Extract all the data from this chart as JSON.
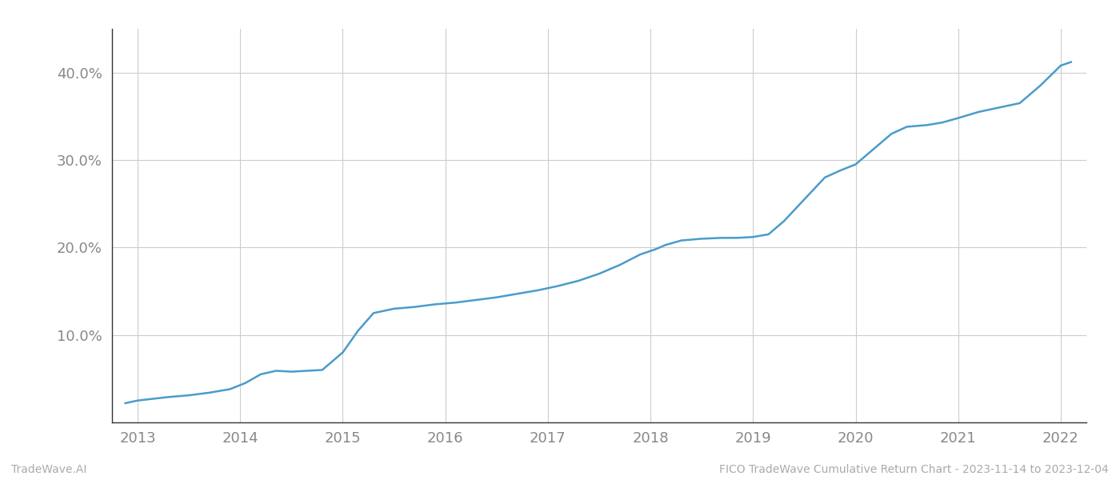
{
  "x_years": [
    2012.88,
    2013.0,
    2013.15,
    2013.3,
    2013.5,
    2013.7,
    2013.9,
    2014.05,
    2014.2,
    2014.35,
    2014.5,
    2014.65,
    2014.8,
    2015.0,
    2015.15,
    2015.3,
    2015.5,
    2015.7,
    2015.9,
    2016.1,
    2016.3,
    2016.5,
    2016.7,
    2016.9,
    2017.1,
    2017.3,
    2017.5,
    2017.7,
    2017.9,
    2018.05,
    2018.15,
    2018.3,
    2018.5,
    2018.7,
    2018.85,
    2019.0,
    2019.15,
    2019.3,
    2019.5,
    2019.7,
    2019.85,
    2020.0,
    2020.2,
    2020.35,
    2020.5,
    2020.7,
    2020.85,
    2021.0,
    2021.2,
    2021.4,
    2021.6,
    2021.8,
    2022.0,
    2022.1
  ],
  "y_values": [
    2.2,
    2.5,
    2.7,
    2.9,
    3.1,
    3.4,
    3.8,
    4.5,
    5.5,
    5.9,
    5.8,
    5.9,
    6.0,
    8.0,
    10.5,
    12.5,
    13.0,
    13.2,
    13.5,
    13.7,
    14.0,
    14.3,
    14.7,
    15.1,
    15.6,
    16.2,
    17.0,
    18.0,
    19.2,
    19.8,
    20.3,
    20.8,
    21.0,
    21.1,
    21.1,
    21.2,
    21.5,
    23.0,
    25.5,
    28.0,
    28.8,
    29.5,
    31.5,
    33.0,
    33.8,
    34.0,
    34.3,
    34.8,
    35.5,
    36.0,
    36.5,
    38.5,
    40.8,
    41.2
  ],
  "line_color": "#4a9cc9",
  "background_color": "#ffffff",
  "grid_color": "#cccccc",
  "axis_color": "#333333",
  "tick_color": "#888888",
  "xlim": [
    2012.75,
    2022.25
  ],
  "ylim": [
    0,
    45
  ],
  "yticks": [
    10.0,
    20.0,
    30.0,
    40.0
  ],
  "ytick_labels": [
    "10.0%",
    "20.0%",
    "30.0%",
    "40.0%"
  ],
  "xticks": [
    2013,
    2014,
    2015,
    2016,
    2017,
    2018,
    2019,
    2020,
    2021,
    2022
  ],
  "xtick_labels": [
    "2013",
    "2014",
    "2015",
    "2016",
    "2017",
    "2018",
    "2019",
    "2020",
    "2021",
    "2022"
  ],
  "footer_left": "TradeWave.AI",
  "footer_right": "FICO TradeWave Cumulative Return Chart - 2023-11-14 to 2023-12-04",
  "footer_color": "#aaaaaa",
  "line_width": 1.8,
  "fig_width": 14.0,
  "fig_height": 6.0,
  "font_family": "DejaVu Sans"
}
